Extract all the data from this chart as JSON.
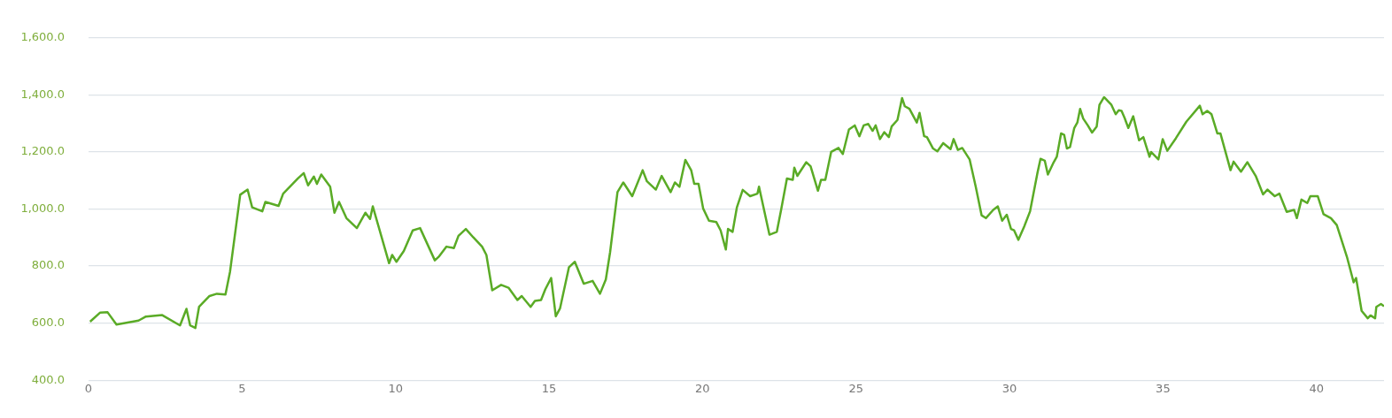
{
  "chart_data": {
    "type": "line",
    "color": "#5aab26",
    "marker": "none",
    "line_style": "solid",
    "grid": "y",
    "legend": false,
    "x": [
      0.05,
      0.38,
      0.62,
      0.91,
      1.63,
      1.87,
      2.4,
      2.98,
      3.19,
      3.31,
      3.48,
      3.6,
      3.94,
      4.18,
      4.46,
      4.61,
      4.94,
      5.18,
      5.33,
      5.66,
      5.76,
      6.19,
      6.34,
      6.82,
      7.01,
      7.15,
      7.34,
      7.44,
      7.58,
      7.87,
      8.01,
      8.16,
      8.4,
      8.74,
      9.02,
      9.17,
      9.26,
      9.79,
      9.89,
      10.03,
      10.27,
      10.56,
      10.8,
      11.28,
      11.42,
      11.66,
      11.9,
      12.05,
      12.29,
      12.53,
      12.82,
      12.96,
      13.15,
      13.44,
      13.68,
      13.97,
      14.11,
      14.4,
      14.54,
      14.74,
      14.88,
      15.07,
      15.22,
      15.36,
      15.65,
      15.84,
      16.13,
      16.42,
      16.66,
      16.85,
      16.99,
      17.23,
      17.42,
      17.71,
      18.05,
      18.19,
      18.48,
      18.67,
      18.96,
      19.1,
      19.25,
      19.44,
      19.63,
      19.73,
      19.87,
      20.02,
      20.21,
      20.45,
      20.59,
      20.76,
      20.83,
      20.98,
      21.12,
      21.31,
      21.55,
      21.79,
      21.84,
      22.18,
      22.42,
      22.56,
      22.75,
      22.94,
      22.99,
      23.09,
      23.38,
      23.52,
      23.76,
      23.86,
      24.0,
      24.19,
      24.43,
      24.57,
      24.77,
      24.96,
      25.11,
      25.25,
      25.4,
      25.54,
      25.64,
      25.78,
      25.92,
      26.07,
      26.16,
      26.35,
      26.5,
      26.59,
      26.74,
      26.98,
      27.07,
      27.22,
      27.31,
      27.51,
      27.65,
      27.84,
      28.08,
      28.18,
      28.32,
      28.46,
      28.7,
      28.9,
      29.09,
      29.23,
      29.47,
      29.62,
      29.76,
      29.91,
      30.05,
      30.15,
      30.29,
      30.48,
      30.67,
      30.91,
      31.01,
      31.15,
      31.25,
      31.44,
      31.54,
      31.68,
      31.78,
      31.87,
      31.97,
      32.11,
      32.21,
      32.3,
      32.4,
      32.55,
      32.69,
      32.84,
      32.93,
      33.08,
      33.32,
      33.46,
      33.56,
      33.65,
      33.75,
      33.87,
      34.03,
      34.22,
      34.36,
      34.56,
      34.61,
      34.85,
      34.99,
      35.14,
      35.42,
      35.76,
      36.2,
      36.29,
      36.44,
      36.58,
      36.77,
      36.87,
      37.2,
      37.3,
      37.54,
      37.75,
      38.02,
      38.26,
      38.4,
      38.64,
      38.79,
      39.03,
      39.27,
      39.36,
      39.51,
      39.7,
      39.8,
      40.04,
      40.23,
      40.47,
      40.66,
      41.0,
      41.21,
      41.29,
      41.47,
      41.67,
      41.76,
      41.91,
      41.95,
      42.1,
      42.2
    ],
    "values": [
      605,
      637,
      638,
      595,
      609,
      623,
      628,
      592,
      650,
      592,
      583,
      657,
      695,
      703,
      700,
      781,
      1050,
      1068,
      1006,
      992,
      1025,
      1011,
      1054,
      1107,
      1126,
      1083,
      1114,
      1088,
      1121,
      1078,
      987,
      1025,
      968,
      933,
      987,
      965,
      1009,
      810,
      839,
      815,
      853,
      925,
      933,
      820,
      834,
      868,
      863,
      906,
      930,
      901,
      868,
      839,
      715,
      734,
      724,
      681,
      695,
      657,
      678,
      681,
      719,
      758,
      624,
      652,
      796,
      815,
      738,
      748,
      703,
      753,
      849,
      1059,
      1093,
      1045,
      1136,
      1097,
      1068,
      1116,
      1059,
      1093,
      1078,
      1172,
      1136,
      1088,
      1088,
      1002,
      959,
      954,
      925,
      858,
      930,
      920,
      1006,
      1067,
      1045,
      1054,
      1078,
      910,
      920,
      997,
      1107,
      1102,
      1145,
      1116,
      1164,
      1150,
      1064,
      1102,
      1102,
      1200,
      1214,
      1193,
      1279,
      1293,
      1255,
      1293,
      1298,
      1274,
      1293,
      1245,
      1269,
      1252,
      1289,
      1312,
      1389,
      1360,
      1351,
      1303,
      1337,
      1255,
      1252,
      1212,
      1202,
      1231,
      1210,
      1245,
      1207,
      1214,
      1174,
      1078,
      978,
      968,
      997,
      1009,
      959,
      980,
      930,
      925,
      892,
      939,
      992,
      1126,
      1176,
      1169,
      1121,
      1164,
      1183,
      1265,
      1260,
      1212,
      1217,
      1284,
      1303,
      1351,
      1317,
      1293,
      1268,
      1289,
      1365,
      1392,
      1365,
      1332,
      1346,
      1344,
      1319,
      1284,
      1325,
      1241,
      1252,
      1183,
      1200,
      1174,
      1245,
      1204,
      1248,
      1306,
      1362,
      1332,
      1344,
      1332,
      1265,
      1265,
      1136,
      1166,
      1131,
      1164,
      1116,
      1051,
      1068,
      1045,
      1054,
      990,
      997,
      968,
      1033,
      1021,
      1045,
      1045,
      982,
      968,
      944,
      829,
      743,
      758,
      643,
      617,
      627,
      617,
      657,
      667,
      659
    ],
    "xlim": [
      0,
      42.2
    ],
    "xticks": [
      0,
      5,
      10,
      15,
      20,
      25,
      30,
      35,
      40
    ],
    "ylim": [
      400,
      1600
    ],
    "yticks": [
      {
        "value": 400,
        "label": "400.0"
      },
      {
        "value": 600,
        "label": "600.0"
      },
      {
        "value": 800,
        "label": "800.0"
      },
      {
        "value": 1000,
        "label": "1,000.0"
      },
      {
        "value": 1200,
        "label": "1,200.0"
      },
      {
        "value": 1400,
        "label": "1,400.0"
      },
      {
        "value": 1600,
        "label": "1,600.0"
      }
    ]
  }
}
